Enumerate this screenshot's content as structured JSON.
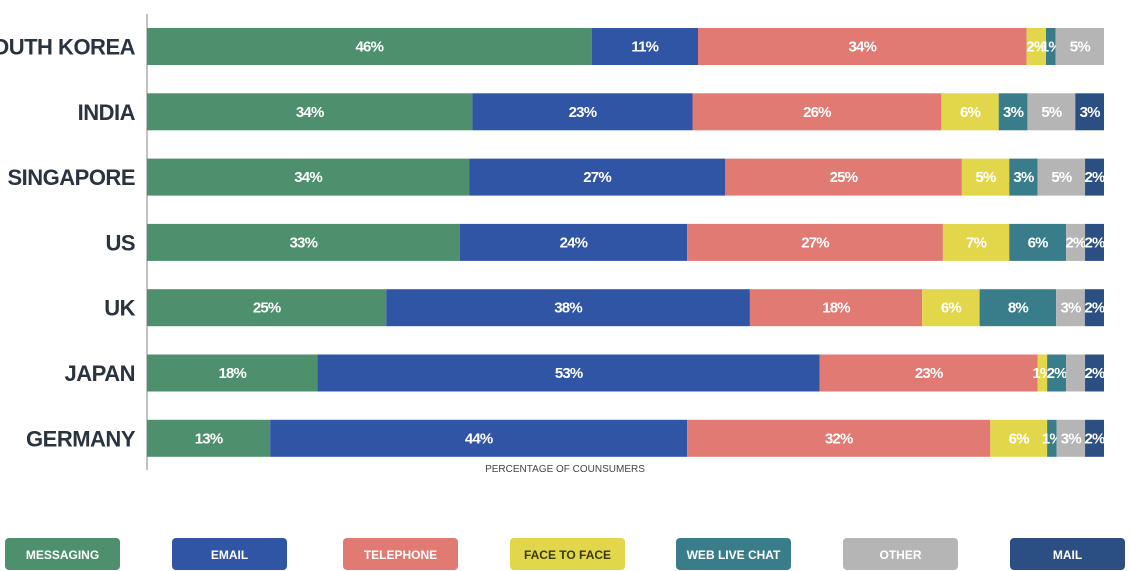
{
  "chart_data": {
    "type": "bar",
    "orientation": "horizontal",
    "stacked": true,
    "xlabel": "PERCENTAGE OF COUNSUMERS",
    "categories": [
      "SOUTH KOREA",
      "INDIA",
      "SINGAPORE",
      "US",
      "UK",
      "JAPAN",
      "GERMANY"
    ],
    "series": [
      {
        "name": "MESSAGING",
        "color": "#4e8f6e",
        "values": [
          46,
          34,
          34,
          33,
          25,
          18,
          13
        ],
        "labels": [
          "46%",
          "34%",
          "34%",
          "33%",
          "25%",
          "18%",
          "13%"
        ]
      },
      {
        "name": "EMAIL",
        "color": "#2f55a4",
        "values": [
          11,
          23,
          27,
          24,
          38,
          53,
          44
        ],
        "labels": [
          "11%",
          "23%",
          "27%",
          "24%",
          "38%",
          "53%",
          "44%"
        ]
      },
      {
        "name": "TELEPHONE",
        "color": "#e07a72",
        "values": [
          34,
          26,
          25,
          27,
          18,
          23,
          32
        ],
        "labels": [
          "34%",
          "26%",
          "25%",
          "27%",
          "18%",
          "23%",
          "32%"
        ]
      },
      {
        "name": "FACE TO FACE",
        "color": "#e2d64a",
        "values": [
          2,
          6,
          5,
          7,
          6,
          1,
          6
        ],
        "labels": [
          "2%",
          "6%",
          "5%",
          "7%",
          "6%",
          "1%",
          "6%"
        ]
      },
      {
        "name": "WEB LIVE CHAT",
        "color": "#3a7d8a",
        "values": [
          1,
          3,
          3,
          6,
          8,
          2,
          1
        ],
        "labels": [
          "1%",
          "3%",
          "3%",
          "6%",
          "8%",
          "2%",
          "1%"
        ]
      },
      {
        "name": "OTHER",
        "color": "#b5b5b5",
        "values": [
          5,
          5,
          5,
          2,
          3,
          2,
          3
        ],
        "labels": [
          "5%",
          "5%",
          "5%",
          "2%",
          "3%",
          "",
          "3%"
        ]
      },
      {
        "name": "MAIL",
        "color": "#2b4f82",
        "values": [
          0,
          3,
          2,
          2,
          2,
          2,
          2
        ],
        "labels": [
          "",
          "3%",
          "2%",
          "2%",
          "2%",
          "2%",
          "2%"
        ]
      }
    ],
    "legend_position": "bottom",
    "grid": false
  }
}
